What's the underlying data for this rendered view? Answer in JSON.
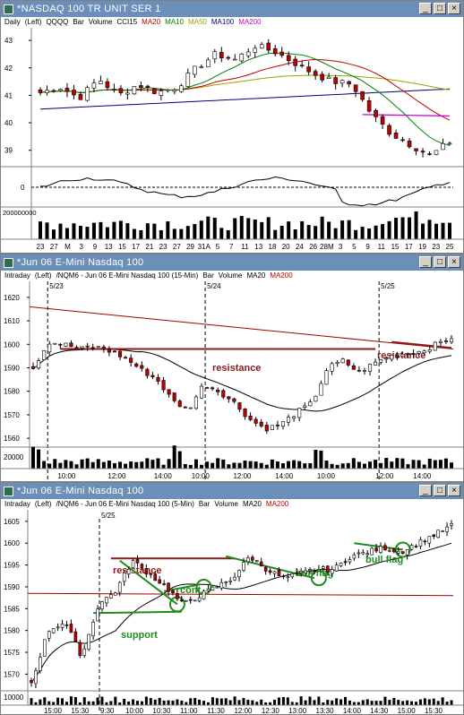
{
  "windows": [
    {
      "title": "*NASDAQ 100 TR UNIT SER 1",
      "header": [
        {
          "text": "Daily",
          "color": "#000000"
        },
        {
          "text": "(Left)",
          "color": "#000000"
        },
        {
          "text": "QQQQ",
          "color": "#000000"
        },
        {
          "text": "Bar",
          "color": "#000000"
        },
        {
          "text": "Volume",
          "color": "#000000"
        },
        {
          "text": "CCI15",
          "color": "#000000"
        },
        {
          "text": "MA20",
          "color": "#c00000"
        },
        {
          "text": "MA10",
          "color": "#008000"
        },
        {
          "text": "MA50",
          "color": "#a0a000"
        },
        {
          "text": "MA100",
          "color": "#000080"
        },
        {
          "text": "MA200",
          "color": "#cc00cc"
        }
      ],
      "yticks": [
        "43",
        "42",
        "41",
        "40",
        "39"
      ],
      "cci_tick": "0",
      "volume_tick": "200000000",
      "xticks": [
        "23",
        "27",
        "M",
        "3",
        "9",
        "13",
        "15",
        "17",
        "21",
        "23",
        "27",
        "29",
        "31A",
        "5",
        "7",
        "11",
        "13",
        "18",
        "20",
        "24",
        "26",
        "28M",
        "3",
        "5",
        "9",
        "11",
        "15",
        "17",
        "19",
        "23",
        "25"
      ]
    },
    {
      "title": "*Jun 06  E-Mini Nasdaq 100",
      "header": [
        {
          "text": "Intraday",
          "color": "#000000"
        },
        {
          "text": "(Left)",
          "color": "#000000"
        },
        {
          "text": "/NQM6 - Jun 06 E-Mini Nasdaq 100 (15-Min)",
          "color": "#000000"
        },
        {
          "text": "Bar",
          "color": "#000000"
        },
        {
          "text": "Volume",
          "color": "#000000"
        },
        {
          "text": "MA20",
          "color": "#000000"
        },
        {
          "text": "MA200",
          "color": "#c00000"
        }
      ],
      "date_labels": [
        "5/23",
        "5/24",
        "5/25"
      ],
      "yticks": [
        "1620",
        "1610",
        "1600",
        "1590",
        "1580",
        "1570",
        "1560"
      ],
      "volume_tick": "20000",
      "xticks": [
        "10:00",
        "12:00",
        "14:00",
        "10:00",
        "12:00",
        "14:00",
        "10:00",
        "12:00",
        "14:00"
      ],
      "annotations": [
        "resistance",
        "resistance"
      ]
    },
    {
      "title": "*Jun 06  E-Mini Nasdaq 100",
      "header": [
        {
          "text": "Intraday",
          "color": "#000000"
        },
        {
          "text": "(Left)",
          "color": "#000000"
        },
        {
          "text": "/NQM6 - Jun 06 E-Mini Nasdaq 100 (5-Min)",
          "color": "#000000"
        },
        {
          "text": "Bar",
          "color": "#000000"
        },
        {
          "text": "Volume",
          "color": "#000000"
        },
        {
          "text": "MA20",
          "color": "#000000"
        },
        {
          "text": "MA200",
          "color": "#c00000"
        }
      ],
      "date_labels": [
        "5/25"
      ],
      "yticks": [
        "1605",
        "1600",
        "1595",
        "1590",
        "1585",
        "1580",
        "1575",
        "1570"
      ],
      "volume_tick": "10000",
      "xticks": [
        "15:00",
        "15:30",
        "9:30",
        "10:00",
        "10:30",
        "11:00",
        "11:30",
        "12:00",
        "12:30",
        "13:00",
        "13:30",
        "14:00",
        "14:30",
        "15:00",
        "15:30"
      ],
      "annotations": [
        "resistance",
        "support",
        "cont.",
        "bull flag",
        "bull flag"
      ]
    }
  ],
  "chart_data": [
    {
      "type": "candlestick",
      "title": "NASDAQ 100 TR UNIT SER 1 (QQQQ) Daily",
      "ylim": [
        38.5,
        43.2
      ],
      "series": [
        {
          "name": "MA20"
        },
        {
          "name": "MA10"
        },
        {
          "name": "MA50"
        },
        {
          "name": "MA100"
        },
        {
          "name": "MA200"
        }
      ]
    },
    {
      "type": "candlestick",
      "title": "/NQM6 - Jun 06 E-Mini Nasdaq 100 (15-Min)",
      "ylim": [
        1557,
        1623
      ]
    },
    {
      "type": "candlestick",
      "title": "/NQM6 - Jun 06 E-Mini Nasdaq 100 (5-Min)",
      "ylim": [
        1567,
        1606
      ]
    }
  ],
  "colors": {
    "titlebar": "#6a8fb8",
    "up": "#ffffff",
    "down": "#c00000",
    "resistance": "#8b1a1a",
    "annotation_green": "#1f8c1f",
    "ma200": "#a00000"
  }
}
